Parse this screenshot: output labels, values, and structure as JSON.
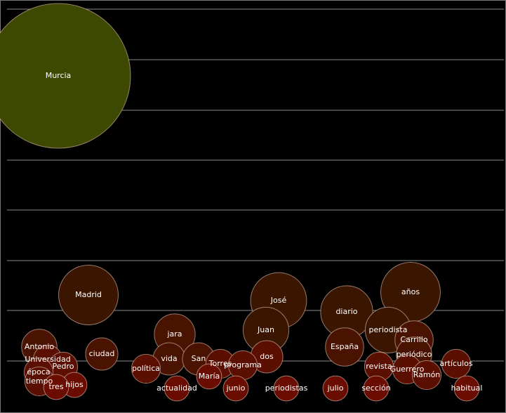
{
  "chart_data": {
    "type": "bubble",
    "categories": [
      "Murcia",
      "Madrid",
      "José",
      "años",
      "diario",
      "Juan",
      "periodista",
      "Carrillo",
      "España",
      "jara",
      "Antonio",
      "ciudad",
      "periódico",
      "vida",
      "San",
      "Universidad",
      "dos",
      "Torres",
      "programa",
      "revista",
      "artículos",
      "Pedro",
      "Guerrero",
      "política",
      "época",
      "Ramón",
      "María",
      "tiempo",
      "hijos",
      "tres",
      "junio",
      "periodistas",
      "julio",
      "actualidad",
      "habitual",
      "sección"
    ],
    "values": [
      100,
      17,
      15,
      17,
      13,
      10,
      10,
      7,
      7,
      8,
      6,
      5,
      6,
      5,
      5,
      4,
      5,
      4,
      4,
      4,
      4,
      4,
      4,
      4,
      4,
      4,
      3,
      4,
      3,
      3,
      3,
      3,
      3,
      3,
      3,
      3
    ],
    "colors": [
      "#3d4900",
      "#3a1500",
      "#3a1500",
      "#3a1500",
      "#3a1500",
      "#3a1500",
      "#3a1500",
      "#4a1200",
      "#4a1200",
      "#4a1200",
      "#4a1200",
      "#4a1200",
      "#4a1200",
      "#4a1200",
      "#4a1200",
      "#5a0f00",
      "#5a0f00",
      "#5a0f00",
      "#5a0f00",
      "#5a0f00",
      "#5a0f00",
      "#5a0f00",
      "#5a0f00",
      "#5a0f00",
      "#5a0f00",
      "#5a0f00",
      "#6a0c00",
      "#5a0f00",
      "#6a0c00",
      "#6a0c00",
      "#6a0c00",
      "#6a0c00",
      "#6a0c00",
      "#6a0c00",
      "#6a0c00",
      "#6a0c00"
    ],
    "grid": true
  }
}
